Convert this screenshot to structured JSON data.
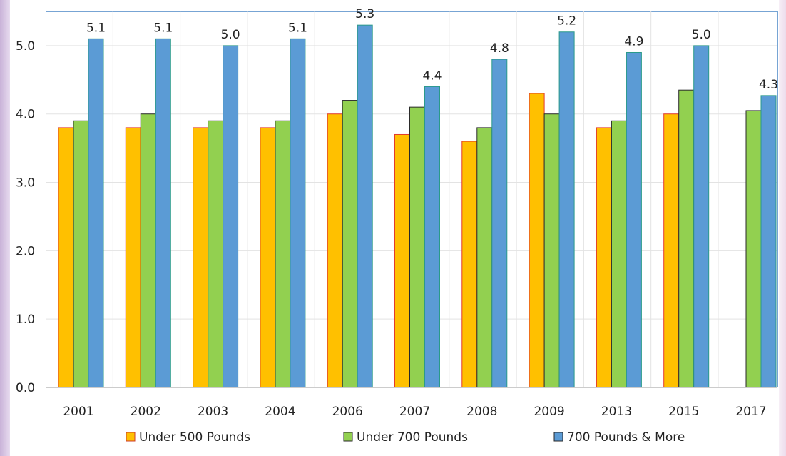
{
  "chart_data": {
    "type": "bar",
    "categories": [
      "2001",
      "2002",
      "2003",
      "2004",
      "2006",
      "2007",
      "2008",
      "2009",
      "2013",
      "2015",
      "2017"
    ],
    "series": [
      {
        "name": "Under 500 Pounds",
        "color": "#ffc000",
        "border": "#e23b2b",
        "values": [
          3.8,
          3.8,
          3.8,
          3.8,
          4.0,
          3.7,
          3.6,
          4.3,
          3.8,
          4.0,
          null
        ]
      },
      {
        "name": "Under 700 Pounds",
        "color": "#92d050",
        "border": "#2a2a2a",
        "values": [
          3.9,
          4.0,
          3.9,
          3.9,
          4.2,
          4.1,
          3.8,
          4.0,
          3.9,
          4.35,
          4.05
        ]
      },
      {
        "name": "700 Pounds & More",
        "color": "#5b9bd5",
        "border": "#2a9a8a",
        "values": [
          5.1,
          5.1,
          5.0,
          5.1,
          5.3,
          4.4,
          4.8,
          5.2,
          4.9,
          5.0,
          4.27
        ]
      }
    ],
    "data_labels": [
      "5.1",
      "5.1",
      "5.0",
      "5.1",
      "5.3",
      "4.4",
      "4.8",
      "5.2",
      "4.9",
      "5.0",
      "4.3"
    ],
    "y_ticks": [
      "0.0",
      "1.0",
      "2.0",
      "3.0",
      "4.0",
      "5.0"
    ],
    "ylim": [
      0,
      5.5
    ],
    "title": "",
    "xlabel": "",
    "ylabel": "",
    "grid": true,
    "legend_position": "bottom",
    "colors": {
      "grid": "#e3e3e3",
      "frame": "#4a86c5",
      "axis": "#9a9a9a"
    }
  }
}
